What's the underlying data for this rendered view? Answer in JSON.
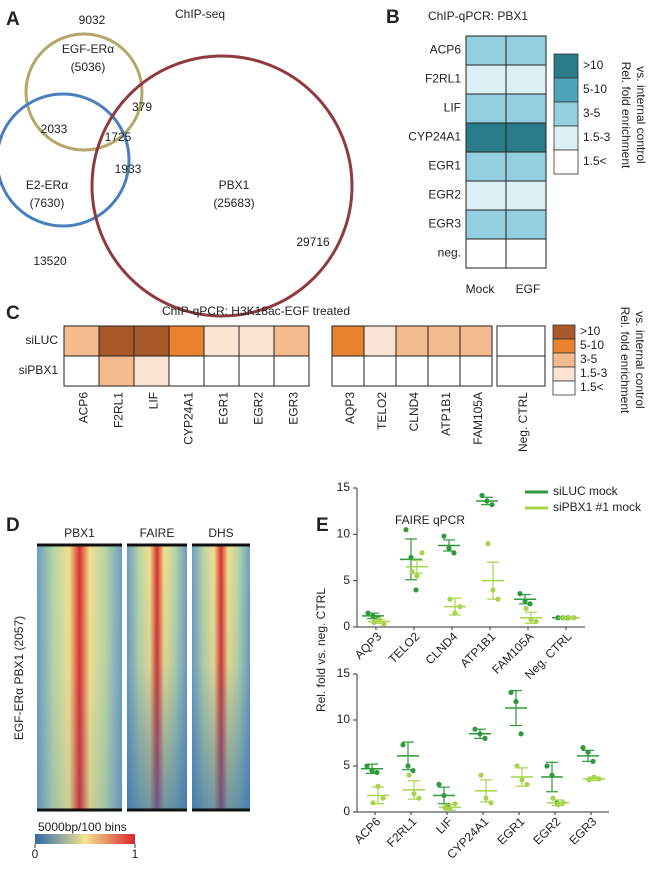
{
  "chart_data": [
    {
      "type": "venn",
      "panel": "A",
      "title": "ChIP-seq",
      "sets": [
        {
          "name": "EGF-ERα",
          "count": 5036,
          "count_label": "(5036)",
          "total": 9032,
          "color": "#b3a76b"
        },
        {
          "name": "E2-ERα",
          "count": 7630,
          "count_label": "(7630)",
          "total": 13520,
          "color": "#4a7fbf"
        },
        {
          "name": "PBX1",
          "count": 25683,
          "count_label": "(25683)",
          "total": 29716,
          "color": "#8e3b3f"
        }
      ],
      "overlaps": [
        2033,
        1725,
        379,
        1933
      ]
    },
    {
      "type": "heatmap",
      "panel": "B",
      "title": "ChIP-qPCR: PBX1",
      "rows": [
        "ACP6",
        "F2RL1",
        "LIF",
        "CYP24A1",
        "EGR1",
        "EGR2",
        "EGR3",
        "neg."
      ],
      "columns": [
        "Mock",
        "EGF"
      ],
      "values": [
        [
          "3-5",
          "3-5"
        ],
        [
          "1.5-3",
          "1.5-3"
        ],
        [
          "3-5",
          "3-5"
        ],
        [
          ">10",
          ">10"
        ],
        [
          "3-5",
          "3-5"
        ],
        [
          "1.5-3",
          "1.5-3"
        ],
        [
          "3-5",
          "3-5"
        ],
        [
          "1.5<",
          "1.5<"
        ]
      ],
      "legend": {
        "title": [
          "Rel. fold enrichment",
          "vs. internal control"
        ],
        "levels": [
          ">10",
          "5-10",
          "3-5",
          "1.5-3",
          "1.5<"
        ],
        "colors": [
          "#2a7b8a",
          "#4ea5ba",
          "#93cfde",
          "#daf0f5",
          "#ffffff"
        ]
      }
    },
    {
      "type": "heatmap-groups",
      "panel": "C",
      "title": "ChIP-qPCR: H3K18ac-EGF treated",
      "rows": [
        "siLUC",
        "siPBX1"
      ],
      "column_groups": [
        {
          "columns": [
            "ACP6",
            "F2RL1",
            "LIF",
            "CYP24A1",
            "EGR1",
            "EGR2",
            "EGR3"
          ],
          "values": [
            [
              "3-5",
              ">10",
              ">10",
              "5-10",
              "1.5-3",
              "1.5-3",
              "3-5"
            ],
            [
              "1.5<",
              "3-5",
              "1.5-3",
              "1.5<",
              "1.5<",
              "1.5<",
              "1.5<"
            ]
          ]
        },
        {
          "columns": [
            "AQP3",
            "TELO2",
            "CLND4",
            "ATP1B1",
            "FAM105A"
          ],
          "values": [
            [
              "5-10",
              "1.5-3",
              "3-5",
              "3-5",
              "3-5"
            ],
            [
              "1.5<",
              "1.5<",
              "1.5<",
              "1.5<",
              "1.5<"
            ]
          ]
        },
        {
          "columns": [
            "Neg. CTRL"
          ],
          "values": [
            [
              "1.5<"
            ],
            [
              "1.5<"
            ]
          ]
        }
      ],
      "legend": {
        "title": [
          "Rel. fold enrichment",
          "vs. internal control"
        ],
        "levels": [
          ">10",
          "5-10",
          "3-5",
          "1.5-3",
          "1.5<"
        ],
        "colors": [
          "#a8592a",
          "#e8822c",
          "#f4bb8e",
          "#fce4d4",
          "#ffffff"
        ]
      }
    },
    {
      "type": "heatmap-image",
      "panel": "D",
      "columns": [
        "PBX1",
        "FAIRE",
        "DHS"
      ],
      "ylabel": "EGF-ERα PBX1 (2057)",
      "colorbar": {
        "label": "5000bp/100 bins",
        "clim": [
          0,
          1
        ],
        "ticks": [
          0,
          1
        ]
      }
    },
    {
      "type": "strip",
      "panel": "E",
      "title": "FAIRE qPCR",
      "ylabel": "Rel. fold vs. neg. CTRL",
      "series": [
        {
          "name": "siLUC mock",
          "color": "#2e9a3c"
        },
        {
          "name": "siPBX1 #1 mock",
          "color": "#a6d44c"
        }
      ],
      "plots": [
        {
          "categories": [
            "AQP3",
            "TELO2",
            "CLND4",
            "ATP1B1",
            "FAM105A",
            "Neg. CTRL"
          ],
          "ylim": [
            0,
            15
          ],
          "yticks": [
            0,
            5,
            10,
            15
          ],
          "series": [
            {
              "values": [
                [
                  1.5,
                  1.2,
                  1.0
                ],
                [
                  10.5,
                  7.5,
                  4.0
                ],
                [
                  9.8,
                  8.5,
                  8.0
                ],
                [
                  14.2,
                  13.6,
                  13.2
                ],
                [
                  3.6,
                  2.8,
                  2.5
                ],
                [
                  1,
                  1,
                  1
                ]
              ],
              "means": [
                1.2,
                7.3,
                8.8,
                13.6,
                3.0,
                1
              ],
              "errors": [
                0.3,
                2.2,
                0.6,
                0.4,
                0.5,
                0
              ]
            },
            {
              "values": [
                [
                  0.5,
                  0.8,
                  0.3
                ],
                [
                  6.0,
                  5.5,
                  8.0
                ],
                [
                  3.0,
                  1.5,
                  2.2
                ],
                [
                  9.0,
                  4.0,
                  3.0
                ],
                [
                  2.0,
                  0.8,
                  0.6
                ],
                [
                  1,
                  1,
                  1
                ]
              ],
              "means": [
                0.6,
                6.5,
                2.2,
                5.0,
                1.0,
                1
              ],
              "errors": [
                0.2,
                0.7,
                0.9,
                2.0,
                0.6,
                0
              ]
            }
          ]
        },
        {
          "categories": [
            "ACP6",
            "F2RL1",
            "LIF",
            "CYP24A1",
            "EGR1",
            "EGR2",
            "EGR3"
          ],
          "ylim": [
            0,
            15
          ],
          "yticks": [
            0,
            5,
            10,
            15
          ],
          "series": [
            {
              "values": [
                [
                  5.0,
                  4.5,
                  4.3
                ],
                [
                  7.3,
                  5.0,
                  4.5
                ],
                [
                  3.0,
                  1.8,
                  0.5
                ],
                [
                  9.0,
                  8.5,
                  8.0
                ],
                [
                  13.0,
                  12.0,
                  8.5
                ],
                [
                  5.0,
                  4.0,
                  1.0
                ],
                [
                  7.0,
                  6.5,
                  5.5
                ]
              ],
              "means": [
                4.7,
                6.1,
                1.8,
                8.5,
                11.3,
                3.8,
                6.1
              ],
              "errors": [
                0.5,
                1.5,
                0.9,
                0.5,
                1.9,
                1.6,
                0.6
              ]
            },
            {
              "values": [
                [
                  1.0,
                  2.8,
                  1.5
                ],
                [
                  4.0,
                  2.0,
                  1.5
                ],
                [
                  0.5,
                  0.4,
                  0.9
                ],
                [
                  4.0,
                  1.5,
                  1.0
                ],
                [
                  5.0,
                  3.5,
                  3.0
                ],
                [
                  1.5,
                  0.8,
                  1.0
                ],
                [
                  3.5,
                  3.8,
                  3.6
                ]
              ],
              "means": [
                1.8,
                2.4,
                0.5,
                2.3,
                3.8,
                1.0,
                3.6
              ],
              "errors": [
                0.9,
                1.0,
                0.3,
                1.2,
                1.0,
                0.3,
                0.2
              ]
            }
          ]
        }
      ]
    }
  ]
}
